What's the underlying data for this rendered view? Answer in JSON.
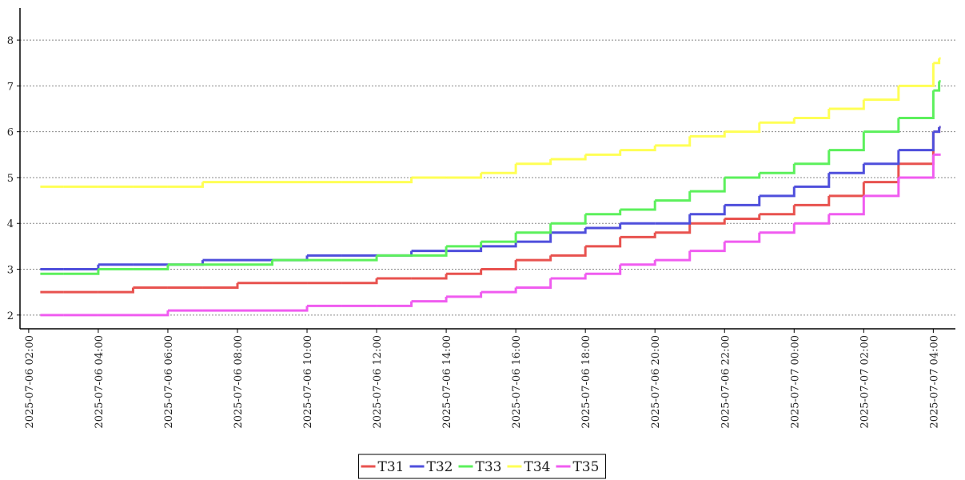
{
  "chart_data": {
    "type": "step",
    "x": [
      "2025-07-06 02:20",
      "2025-07-06 03:00",
      "2025-07-06 04:00",
      "2025-07-06 05:00",
      "2025-07-06 06:00",
      "2025-07-06 07:00",
      "2025-07-06 08:00",
      "2025-07-06 09:00",
      "2025-07-06 10:00",
      "2025-07-06 11:00",
      "2025-07-06 12:00",
      "2025-07-06 13:00",
      "2025-07-06 14:00",
      "2025-07-06 15:00",
      "2025-07-06 16:00",
      "2025-07-06 17:00",
      "2025-07-06 18:00",
      "2025-07-06 19:00",
      "2025-07-06 20:00",
      "2025-07-06 21:00",
      "2025-07-06 22:00",
      "2025-07-06 23:00",
      "2025-07-07 00:00",
      "2025-07-07 01:00",
      "2025-07-07 02:00",
      "2025-07-07 03:00",
      "2025-07-07 04:00",
      "2025-07-07 04:10"
    ],
    "series": [
      {
        "name": "T31",
        "color": "#e8524f",
        "values": [
          2.5,
          2.5,
          2.5,
          2.6,
          2.6,
          2.6,
          2.7,
          2.7,
          2.7,
          2.7,
          2.8,
          2.8,
          2.9,
          3.0,
          3.2,
          3.3,
          3.5,
          3.7,
          3.8,
          4.0,
          4.1,
          4.2,
          4.4,
          4.6,
          4.9,
          5.3,
          6.0,
          6.1
        ]
      },
      {
        "name": "T32",
        "color": "#4f4fdc",
        "values": [
          3.0,
          3.0,
          3.1,
          3.1,
          3.1,
          3.2,
          3.2,
          3.2,
          3.3,
          3.3,
          3.3,
          3.4,
          3.4,
          3.5,
          3.6,
          3.8,
          3.9,
          4.0,
          4.0,
          4.2,
          4.4,
          4.6,
          4.8,
          5.1,
          5.3,
          5.6,
          6.0,
          6.1
        ]
      },
      {
        "name": "T33",
        "color": "#5cf05c",
        "values": [
          2.9,
          2.9,
          3.0,
          3.0,
          3.1,
          3.1,
          3.1,
          3.2,
          3.2,
          3.2,
          3.3,
          3.3,
          3.5,
          3.6,
          3.8,
          4.0,
          4.2,
          4.3,
          4.5,
          4.7,
          5.0,
          5.1,
          5.3,
          5.6,
          6.0,
          6.3,
          6.9,
          7.1
        ]
      },
      {
        "name": "T34",
        "color": "#ffff55",
        "values": [
          4.8,
          4.8,
          4.8,
          4.8,
          4.8,
          4.9,
          4.9,
          4.9,
          4.9,
          4.9,
          4.9,
          5.0,
          5.0,
          5.1,
          5.3,
          5.4,
          5.5,
          5.6,
          5.7,
          5.9,
          6.0,
          6.2,
          6.3,
          6.5,
          6.7,
          7.0,
          7.5,
          7.6
        ]
      },
      {
        "name": "T35",
        "color": "#f05cf0",
        "values": [
          2.0,
          2.0,
          2.0,
          2.0,
          2.1,
          2.1,
          2.1,
          2.1,
          2.2,
          2.2,
          2.2,
          2.3,
          2.4,
          2.5,
          2.6,
          2.8,
          2.9,
          3.1,
          3.2,
          3.4,
          3.6,
          3.8,
          4.0,
          4.2,
          4.6,
          5.0,
          5.5,
          5.5
        ]
      }
    ],
    "xlim": [
      "2025-07-06 01:45",
      "2025-07-07 04:45"
    ],
    "xticks": [
      "2025-07-06 02:00",
      "2025-07-06 04:00",
      "2025-07-06 06:00",
      "2025-07-06 08:00",
      "2025-07-06 10:00",
      "2025-07-06 12:00",
      "2025-07-06 14:00",
      "2025-07-06 16:00",
      "2025-07-06 18:00",
      "2025-07-06 20:00",
      "2025-07-06 22:00",
      "2025-07-07 00:00",
      "2025-07-07 02:00",
      "2025-07-07 04:00"
    ],
    "ylim": [
      1.7,
      8.7
    ],
    "yticks": [
      2,
      3,
      4,
      5,
      6,
      7,
      8
    ],
    "grid": true,
    "legend": "bottom"
  }
}
